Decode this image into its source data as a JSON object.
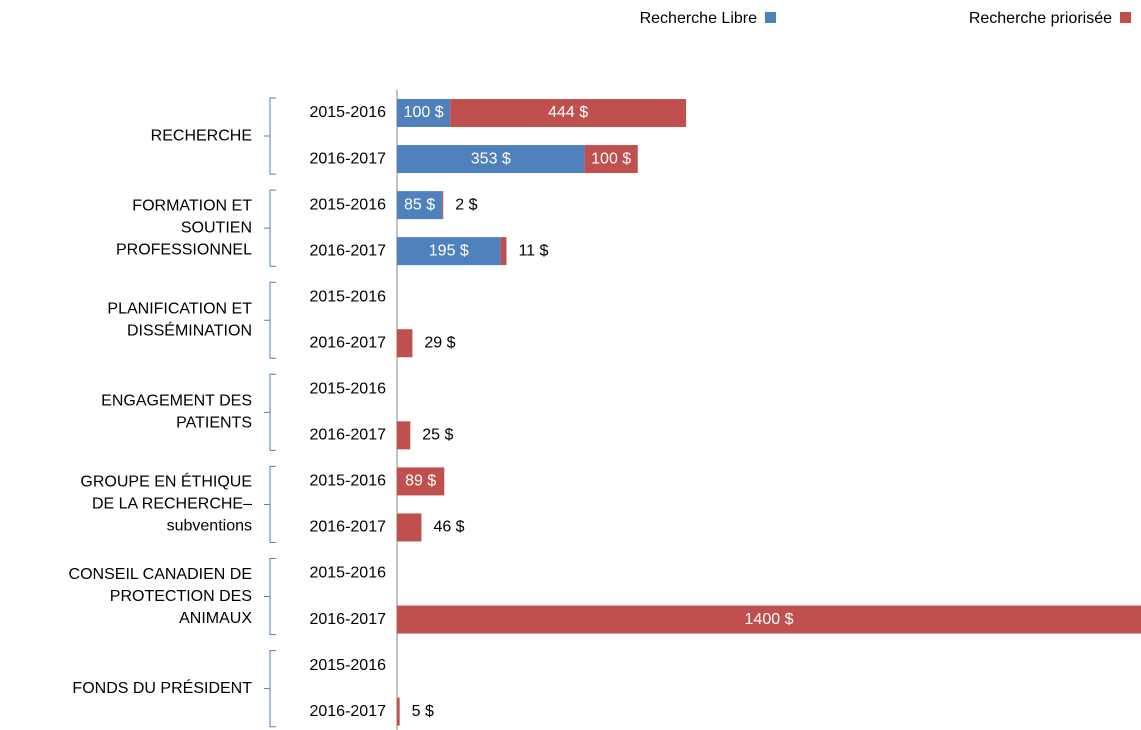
{
  "chart_data": {
    "type": "stacked-bar-horizontal",
    "groups": [
      {
        "label": [
          "RECHERCHE"
        ]
      },
      {
        "label": [
          "FORMATION ET",
          "SOUTIEN",
          "PROFESSIONNEL"
        ]
      },
      {
        "label": [
          "PLANIFICATION ET",
          "DISSÉMINATION"
        ]
      },
      {
        "label": [
          "ENGAGEMENT DES",
          "PATIENTS"
        ]
      },
      {
        "label": [
          "GROUPE EN ÉTHIQUE",
          "DE LA RECHERCHE–",
          "subventions"
        ]
      },
      {
        "label": [
          "CONSEIL CANADIEN DE",
          "PROTECTION DES",
          "ANIMAUX"
        ]
      },
      {
        "label": [
          "FONDS DU PRÉSIDENT"
        ]
      }
    ],
    "categories": [
      "2015-2016",
      "2016-2017",
      "2015-2016",
      "2016-2017",
      "2015-2016",
      "2016-2017",
      "2015-2016",
      "2016-2017",
      "2015-2016",
      "2016-2017",
      "2015-2016",
      "2016-2017",
      "2015-2016",
      "2016-2017"
    ],
    "series": [
      {
        "name": "Recherche Libre",
        "color": "#4f81bd",
        "values": [
          100,
          353,
          85,
          195,
          null,
          null,
          null,
          null,
          null,
          null,
          null,
          null,
          null,
          null
        ],
        "value_labels": [
          "100 $",
          "353 $",
          "85 $",
          "195 $",
          null,
          null,
          null,
          null,
          null,
          null,
          null,
          null,
          null,
          null
        ]
      },
      {
        "name": "Recherche priorisée",
        "color": "#c0504d",
        "values": [
          444,
          100,
          2,
          11,
          null,
          29,
          null,
          25,
          89,
          46,
          null,
          1400,
          null,
          5
        ],
        "value_labels": [
          "444 $",
          "100 $",
          "2 $",
          "11 $",
          null,
          "29 $",
          null,
          "25 $",
          "89 $",
          "46 $",
          null,
          "1400 $",
          null,
          "5 $"
        ]
      }
    ],
    "xlim": [
      0,
      1400
    ],
    "legend": "top-right"
  }
}
